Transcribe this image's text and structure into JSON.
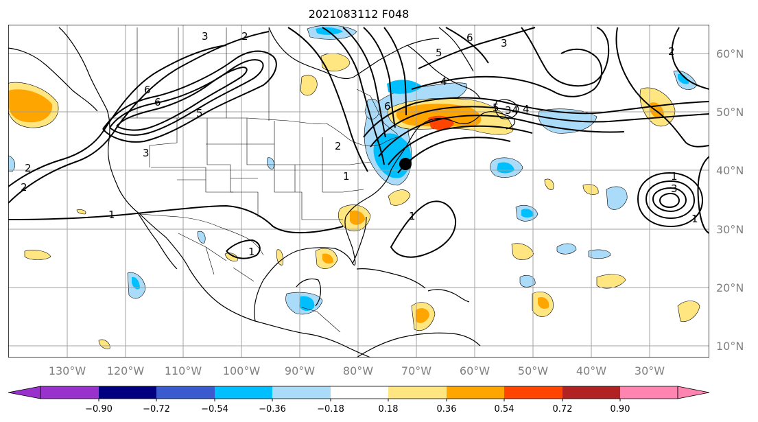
{
  "title": "2021083112 F048",
  "lon_labels": [
    "130°W",
    "120°W",
    "110°W",
    "100°W",
    "90°W",
    "80°W",
    "70°W",
    "60°W",
    "50°W",
    "40°W",
    "30°W"
  ],
  "lat_labels": [
    "60°N",
    "50°N",
    "40°N",
    "30°N",
    "20°N",
    "10°N"
  ],
  "contour_labels": [
    "3",
    "2",
    "6",
    "5",
    "6",
    "3",
    "2",
    "4",
    "6",
    "5",
    "4",
    "2",
    "3",
    "1",
    "2",
    "1",
    "6",
    "5",
    "4",
    "3",
    "2",
    "1",
    "1",
    "1",
    "3",
    "1"
  ],
  "colorbar": {
    "tick_labels": [
      "−0.90",
      "−0.72",
      "−0.54",
      "−0.36",
      "−0.18",
      "0.18",
      "0.36",
      "0.54",
      "0.72",
      "0.90"
    ],
    "colors": [
      "#9932cc",
      "#000080",
      "#3a5bd0",
      "#00bfff",
      "#aadcfa",
      "#ffffff",
      "#ffe680",
      "#ffa500",
      "#ff4500",
      "#b22222",
      "#ff85b0"
    ]
  },
  "colors": {
    "light_blue": "#aadcfa",
    "blue": "#00bfff",
    "yellow": "#ffe680",
    "orange": "#ffa500",
    "red": "#ff4500"
  }
}
